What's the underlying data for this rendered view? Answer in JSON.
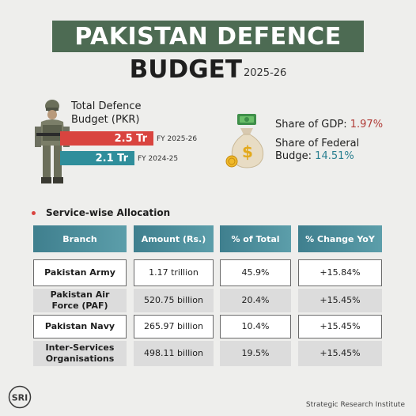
{
  "title": {
    "line1": "PAKISTAN DEFENCE",
    "line2": "BUDGET",
    "year": "2025-26"
  },
  "budget": {
    "label": "Total Defence Budget (PKR)",
    "current": {
      "value": "2.5 Tr",
      "fy": "FY 2025-26",
      "amount_tr": 2.5
    },
    "previous": {
      "value": "2.1 Tr",
      "fy": "FY 2024-25",
      "amount_tr": 2.1
    }
  },
  "stats": {
    "gdp_label": "Share of GDP: ",
    "gdp_value": "1.97%",
    "federal_label": "Share of Federal Budge: ",
    "federal_value": "14.51%"
  },
  "section_title": "Service-wise Allocation",
  "table": {
    "headers": [
      "Branch",
      "Amount (Rs.)",
      "% of Total",
      "% Change YoY"
    ],
    "rows": [
      [
        "Pakistan Army",
        "1.17 trillion",
        "45.9%",
        "+15.84%"
      ],
      [
        "Pakistan Air Force (PAF)",
        "520.75 billion",
        "20.4%",
        "+15.45%"
      ],
      [
        "Pakistan Navy",
        "265.97 billion",
        "10.4%",
        "+15.45%"
      ],
      [
        "Inter-Services Organisations",
        "498.11 billion",
        "19.5%",
        "+15.45%"
      ]
    ]
  },
  "logo_text": "SRI",
  "credit": "Strategic Research Institute",
  "colors": {
    "banner": "#4d6b53",
    "bar_current": "#d9443f",
    "bar_previous": "#2f8e9b",
    "header": "#3f7f8e"
  },
  "icons": [
    "soldier-icon",
    "money-bag-icon",
    "cash-icon",
    "coins-icon"
  ]
}
